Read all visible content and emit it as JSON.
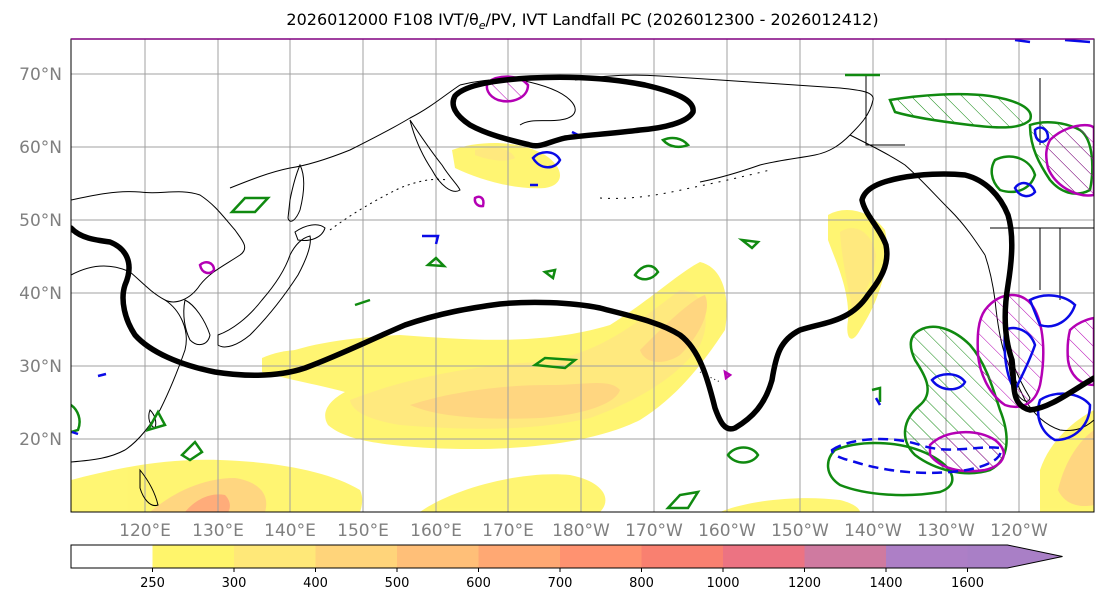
{
  "title": "2026012000 F108 IVT/θ",
  "title_sub": "e",
  "title_rest": "/PV, IVT Landfall PC (2026012300 - 2026012412)",
  "map": {
    "lat_labels": [
      "70°N",
      "60°N",
      "50°N",
      "40°N",
      "30°N",
      "20°N"
    ],
    "lon_labels": [
      "120°E",
      "130°E",
      "140°E",
      "150°E",
      "160°E",
      "170°E",
      "180°W",
      "170°W",
      "160°W",
      "150°W",
      "140°W",
      "130°W",
      "120°W"
    ]
  },
  "colorbar": {
    "levels": [
      "250",
      "300",
      "400",
      "500",
      "600",
      "700",
      "800",
      "1000",
      "1200",
      "1400",
      "1600"
    ],
    "colors": [
      "#ffffff",
      "#fff56b",
      "#ffe878",
      "#ffd47a",
      "#ffbf78",
      "#ffa873",
      "#ff9270",
      "#f98070",
      "#ec7382",
      "#cf7aa0",
      "#ad7fc6",
      "#a97fc6"
    ]
  },
  "colors": {
    "ivt_line": "#000000",
    "green_contour": "#108a10",
    "magenta_contour": "#b400b4",
    "blue_contour": "#0a0ae6"
  }
}
